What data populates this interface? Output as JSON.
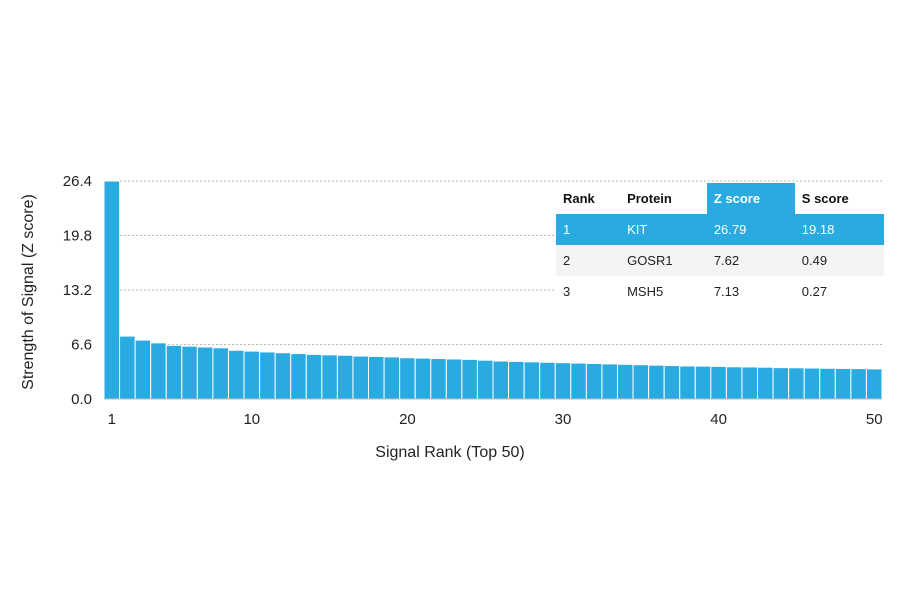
{
  "chart_data": {
    "type": "bar",
    "xlabel": "Signal Rank (Top 50)",
    "ylabel": "Strength of Signal (Z score)",
    "ylim": [
      0,
      26.4
    ],
    "y_ticks": [
      "0.0",
      "6.6",
      "13.2",
      "19.8",
      "26.4"
    ],
    "x_ticks": [
      "1",
      "10",
      "20",
      "30",
      "40",
      "50"
    ],
    "grid": "horizontal dashed",
    "x": [
      1,
      2,
      3,
      4,
      5,
      6,
      7,
      8,
      9,
      10,
      11,
      12,
      13,
      14,
      15,
      16,
      17,
      18,
      19,
      20,
      21,
      22,
      23,
      24,
      25,
      26,
      27,
      28,
      29,
      30,
      31,
      32,
      33,
      34,
      35,
      36,
      37,
      38,
      39,
      40,
      41,
      42,
      43,
      44,
      45,
      46,
      47,
      48,
      49,
      50
    ],
    "values": [
      26.79,
      7.62,
      7.13,
      6.8,
      6.5,
      6.4,
      6.3,
      6.2,
      5.9,
      5.8,
      5.7,
      5.6,
      5.5,
      5.4,
      5.35,
      5.3,
      5.2,
      5.15,
      5.1,
      5.0,
      4.95,
      4.9,
      4.85,
      4.8,
      4.7,
      4.6,
      4.55,
      4.5,
      4.45,
      4.4,
      4.35,
      4.3,
      4.25,
      4.2,
      4.15,
      4.1,
      4.05,
      4.0,
      3.98,
      3.95,
      3.9,
      3.88,
      3.85,
      3.8,
      3.78,
      3.75,
      3.72,
      3.7,
      3.68,
      3.65
    ],
    "bar_color": "#29abe2"
  },
  "table": {
    "headers": [
      "Rank",
      "Protein",
      "Z score",
      "S score"
    ],
    "rows": [
      {
        "rank": "1",
        "protein": "KIT",
        "z": "26.79",
        "s": "19.18"
      },
      {
        "rank": "2",
        "protein": "GOSR1",
        "z": "7.62",
        "s": "0.49"
      },
      {
        "rank": "3",
        "protein": "MSH5",
        "z": "7.13",
        "s": "0.27"
      }
    ],
    "highlight_color": "#29abe2"
  }
}
